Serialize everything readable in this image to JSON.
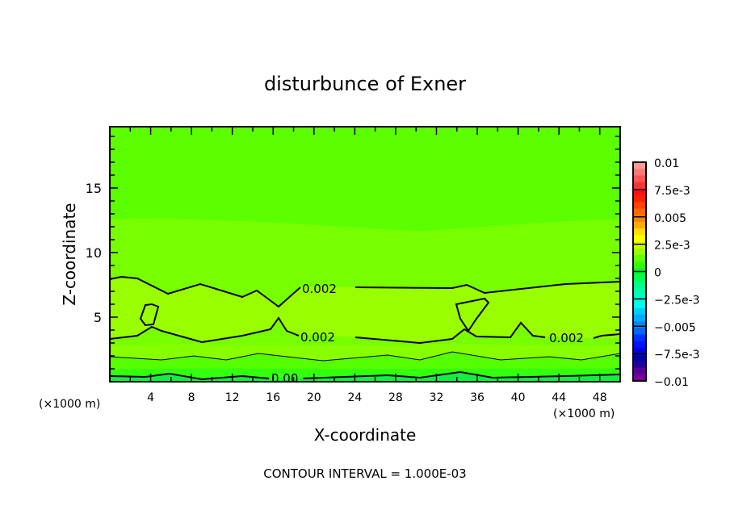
{
  "chart_data": {
    "type": "heatmap",
    "subtype": "filled-contour",
    "title": "disturbunce of Exner",
    "xlabel": "X-coordinate",
    "ylabel": "Z-coordinate",
    "x_unit_label": "(×1000 m)",
    "y_unit_label": "(×1000 m)",
    "xlim": [
      0,
      50
    ],
    "ylim": [
      0,
      19.75
    ],
    "x_ticks": [
      4,
      8,
      12,
      16,
      20,
      24,
      28,
      32,
      36,
      40,
      44,
      48
    ],
    "y_ticks": [
      5,
      10,
      15
    ],
    "contour_labels": [
      "0.002",
      "0.002",
      "0.002",
      "0.00"
    ],
    "footer": "CONTOUR INTERVAL = 1.000E-03",
    "colorbar": {
      "min": -0.01,
      "max": 0.01,
      "step": 0.001,
      "tick_labels": [
        "0.01",
        "7.5e-3",
        "0.005",
        "2.5e-3",
        "0",
        "−2.5e-3",
        "−0.005",
        "−7.5e-3",
        "−0.01"
      ],
      "colors": [
        "#ff9999",
        "#ff7777",
        "#ff5555",
        "#ff3333",
        "#ff1111",
        "#ff2200",
        "#ff4400",
        "#ff6600",
        "#ff8800",
        "#ffaa00",
        "#ffdd00",
        "#ffff00",
        "#ccff00",
        "#99ff00",
        "#66ff00",
        "#33ff00",
        "#00ff22",
        "#00ff55",
        "#00ff88",
        "#00ffaa",
        "#00ffcc",
        "#00ffee",
        "#00ccff",
        "#00aaff",
        "#0088ff",
        "#0066ff",
        "#0033ff",
        "#0011ff",
        "#0000dd",
        "#0000aa",
        "#220099",
        "#550099",
        "#770099"
      ]
    }
  }
}
